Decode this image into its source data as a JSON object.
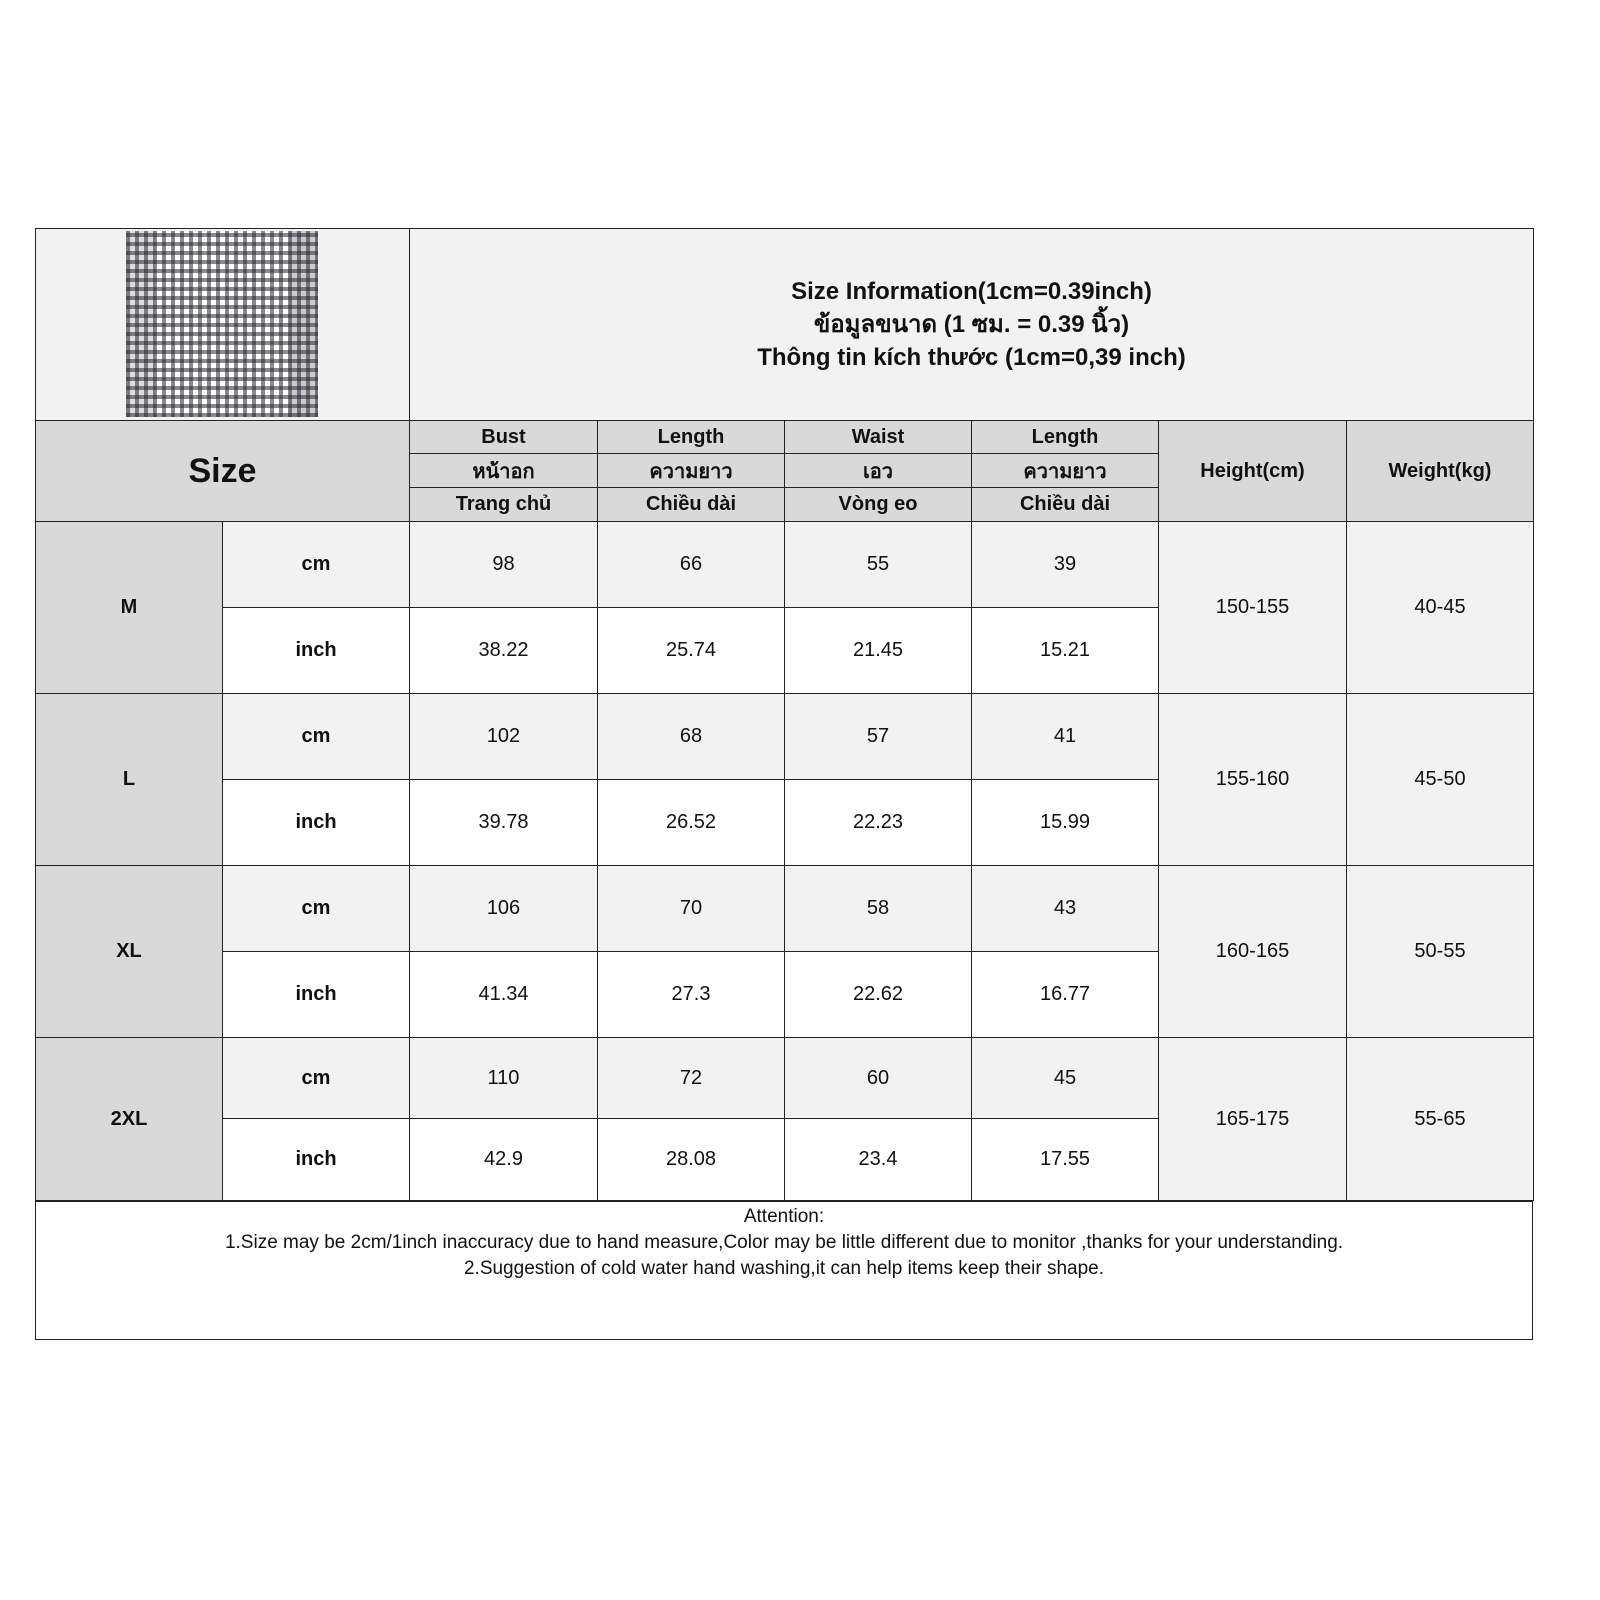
{
  "title_lines": [
    "Size Information(1cm=0.39inch)",
    "ข้อมูลขนาด (1 ซม. = 0.39 นิ้ว)",
    "Thông tin kích thước (1cm=0,39 inch)"
  ],
  "size_header": "Size",
  "columns": [
    {
      "en": "Bust",
      "th": "หน้าอก",
      "vi": "Trang chủ"
    },
    {
      "en": "Length",
      "th": "ความยาว",
      "vi": "Chiều dài"
    },
    {
      "en": "Waist",
      "th": "เอว",
      "vi": "Vòng eo"
    },
    {
      "en": "Length",
      "th": "ความยาว",
      "vi": "Chiều dài"
    }
  ],
  "height_header": "Height(cm)",
  "weight_header": "Weight(kg)",
  "units": {
    "cm": "cm",
    "inch": "inch"
  },
  "rows": [
    {
      "size": "M",
      "cm": [
        "98",
        "66",
        "55",
        "39"
      ],
      "inch": [
        "38.22",
        "25.74",
        "21.45",
        "15.21"
      ],
      "height": "150-155",
      "weight": "40-45"
    },
    {
      "size": "L",
      "cm": [
        "102",
        "68",
        "57",
        "41"
      ],
      "inch": [
        "39.78",
        "26.52",
        "22.23",
        "15.99"
      ],
      "height": "155-160",
      "weight": "45-50"
    },
    {
      "size": "XL",
      "cm": [
        "106",
        "70",
        "58",
        "43"
      ],
      "inch": [
        "41.34",
        "27.3",
        "22.62",
        "16.77"
      ],
      "height": "160-165",
      "weight": "50-55"
    },
    {
      "size": "2XL",
      "cm": [
        "110",
        "72",
        "60",
        "45"
      ],
      "inch": [
        "42.9",
        "28.08",
        "23.4",
        "17.55"
      ],
      "height": "165-175",
      "weight": "55-65"
    }
  ],
  "notes": {
    "heading": "Attention:",
    "line1": "1.Size may be 2cm/1inch inaccuracy due to hand measure,Color may be little different due to monitor ,thanks for your understanding.",
    "line2": "2.Suggestion of cold water hand washing,it can help items keep their shape."
  }
}
